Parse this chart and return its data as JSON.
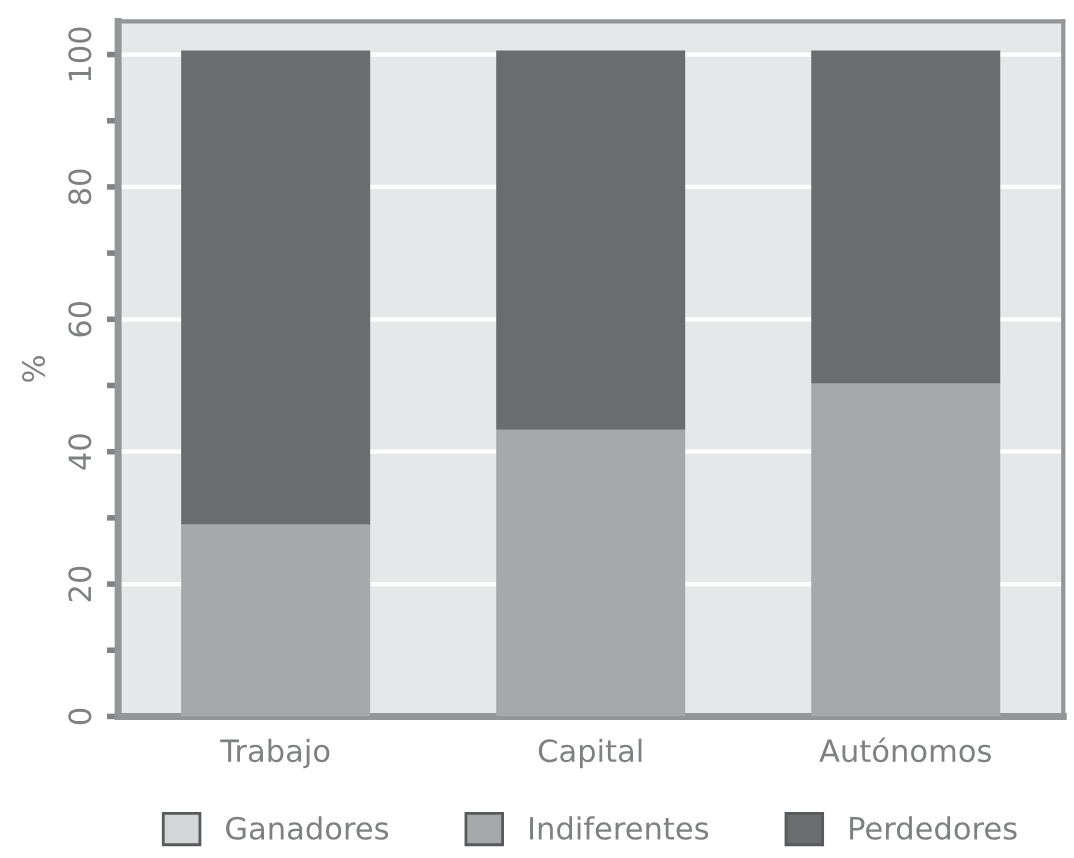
{
  "chart_data": {
    "type": "bar",
    "stacked": true,
    "ylabel": "%",
    "categories": [
      "Trabajo",
      "Capital",
      "Autónomos"
    ],
    "series": [
      {
        "name": "Ganadores",
        "color": "#d4d5d7",
        "values": [
          0,
          0,
          0
        ]
      },
      {
        "name": "Indiferentes",
        "color": "#a7a8ab",
        "values": [
          29.0,
          43.3,
          50.3
        ]
      },
      {
        "name": "Perdedores",
        "color": "#6b6c70",
        "values": [
          71.6,
          57.3,
          50.3
        ]
      }
    ],
    "ylim": [
      0,
      105
    ],
    "yticks": [
      0,
      {
        "value": 10,
        "label": null
      },
      20,
      {
        "value": 30,
        "label": null
      },
      40,
      {
        "value": 50,
        "label": null
      },
      60,
      {
        "value": 70,
        "label": null
      },
      80,
      {
        "value": 90,
        "label": null
      },
      100
    ],
    "grid": "y",
    "legend": "bottom"
  }
}
